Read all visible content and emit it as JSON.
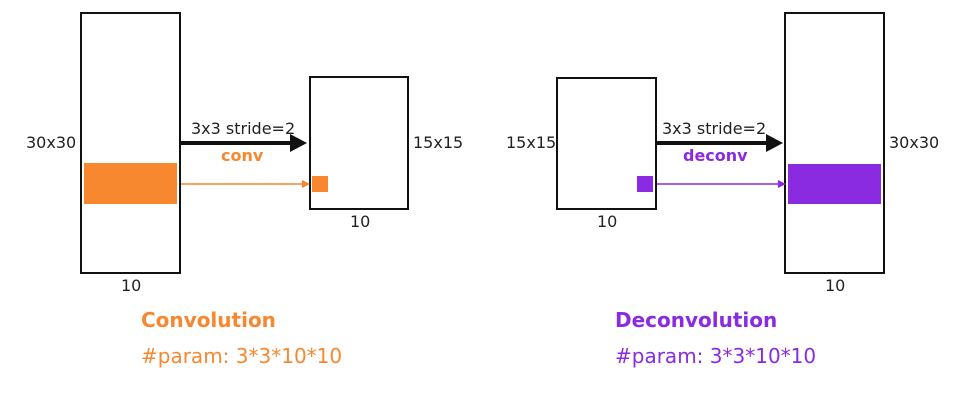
{
  "colors": {
    "conv": "#F7882F",
    "deconv": "#8A2BE2",
    "line": "#111111"
  },
  "convolution": {
    "input": {
      "size_label": "30x30",
      "depth_label": "10"
    },
    "op": {
      "arrow_label": "3x3 stride=2",
      "name": "conv"
    },
    "output": {
      "size_label": "15x15",
      "depth_label": "10"
    },
    "title": "Convolution",
    "param_text": "#param: 3*3*10*10"
  },
  "deconvolution": {
    "input": {
      "size_label": "15x15",
      "depth_label": "10"
    },
    "op": {
      "arrow_label": "3x3 stride=2",
      "name": "deconv"
    },
    "output": {
      "size_label": "30x30",
      "depth_label": "10"
    },
    "title": "Deconvolution",
    "param_text": "#param: 3*3*10*10"
  }
}
